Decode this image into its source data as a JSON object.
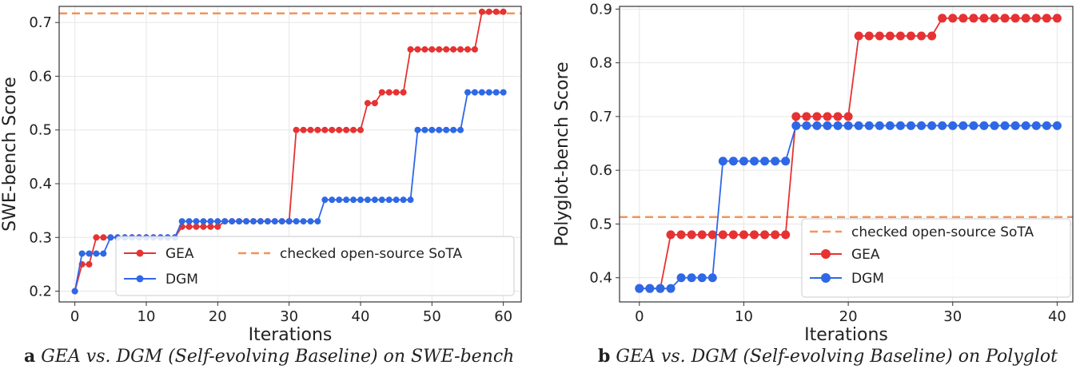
{
  "chart_data": [
    {
      "type": "line",
      "caption_tag": "a",
      "caption": "GEA vs. DGM (Self-evolving Baseline) on SWE-bench",
      "xlabel": "Iterations",
      "ylabel": "SWE-bench Score",
      "xlim": [
        -2.2,
        62.5
      ],
      "ylim": [
        0.18,
        0.73
      ],
      "xticks": [
        0,
        10,
        20,
        30,
        40,
        50,
        60
      ],
      "yticks": [
        0.2,
        0.3,
        0.4,
        0.5,
        0.6,
        0.7
      ],
      "grid": true,
      "legend_position": "bottom-right",
      "reference_line": {
        "name": "checked open-source SoTA",
        "y": 0.717,
        "color": "#f4935a"
      },
      "series": [
        {
          "name": "GEA",
          "color": "#e63232",
          "x": [
            0,
            1,
            2,
            3,
            4,
            5,
            6,
            7,
            8,
            9,
            10,
            11,
            12,
            13,
            14,
            15,
            16,
            17,
            18,
            19,
            20,
            21,
            22,
            23,
            24,
            25,
            26,
            27,
            28,
            29,
            30,
            31,
            32,
            33,
            34,
            35,
            36,
            37,
            38,
            39,
            40,
            41,
            42,
            43,
            44,
            45,
            46,
            47,
            48,
            49,
            50,
            51,
            52,
            53,
            54,
            55,
            56,
            57,
            58,
            59,
            60
          ],
          "y": [
            0.2,
            0.25,
            0.25,
            0.3,
            0.3,
            0.3,
            0.3,
            0.3,
            0.3,
            0.3,
            0.3,
            0.3,
            0.3,
            0.3,
            0.3,
            0.32,
            0.32,
            0.32,
            0.32,
            0.32,
            0.32,
            0.33,
            0.33,
            0.33,
            0.33,
            0.33,
            0.33,
            0.33,
            0.33,
            0.33,
            0.33,
            0.5,
            0.5,
            0.5,
            0.5,
            0.5,
            0.5,
            0.5,
            0.5,
            0.5,
            0.5,
            0.55,
            0.55,
            0.57,
            0.57,
            0.57,
            0.57,
            0.65,
            0.65,
            0.65,
            0.65,
            0.65,
            0.65,
            0.65,
            0.65,
            0.65,
            0.65,
            0.72,
            0.72,
            0.72,
            0.72
          ]
        },
        {
          "name": "DGM",
          "color": "#2e68e6",
          "x": [
            0,
            1,
            2,
            3,
            4,
            5,
            6,
            7,
            8,
            9,
            10,
            11,
            12,
            13,
            14,
            15,
            16,
            17,
            18,
            19,
            20,
            21,
            22,
            23,
            24,
            25,
            26,
            27,
            28,
            29,
            30,
            31,
            32,
            33,
            34,
            35,
            36,
            37,
            38,
            39,
            40,
            41,
            42,
            43,
            44,
            45,
            46,
            47,
            48,
            49,
            50,
            51,
            52,
            53,
            54,
            55,
            56,
            57,
            58,
            59,
            60
          ],
          "y": [
            0.2,
            0.27,
            0.27,
            0.27,
            0.27,
            0.3,
            0.3,
            0.3,
            0.3,
            0.3,
            0.3,
            0.3,
            0.3,
            0.3,
            0.3,
            0.33,
            0.33,
            0.33,
            0.33,
            0.33,
            0.33,
            0.33,
            0.33,
            0.33,
            0.33,
            0.33,
            0.33,
            0.33,
            0.33,
            0.33,
            0.33,
            0.33,
            0.33,
            0.33,
            0.33,
            0.37,
            0.37,
            0.37,
            0.37,
            0.37,
            0.37,
            0.37,
            0.37,
            0.37,
            0.37,
            0.37,
            0.37,
            0.37,
            0.5,
            0.5,
            0.5,
            0.5,
            0.5,
            0.5,
            0.5,
            0.57,
            0.57,
            0.57,
            0.57,
            0.57,
            0.57
          ]
        }
      ]
    },
    {
      "type": "line",
      "caption_tag": "b",
      "caption": "GEA vs. DGM (Self-evolving Baseline) on Polyglot",
      "xlabel": "Iterations",
      "ylabel": "Polyglot-bench Score",
      "xlim": [
        -1.9,
        41.5
      ],
      "ylim": [
        0.355,
        0.905
      ],
      "xticks": [
        0,
        10,
        20,
        30,
        40
      ],
      "yticks": [
        0.4,
        0.5,
        0.6,
        0.7,
        0.8,
        0.9
      ],
      "grid": true,
      "legend_position": "bottom-right",
      "reference_line": {
        "name": "checked open-source SoTA",
        "y": 0.513,
        "color": "#f4935a"
      },
      "series": [
        {
          "name": "GEA",
          "color": "#e63232",
          "x": [
            0,
            1,
            2,
            3,
            4,
            5,
            6,
            7,
            8,
            9,
            10,
            11,
            12,
            13,
            14,
            15,
            16,
            17,
            18,
            19,
            20,
            21,
            22,
            23,
            24,
            25,
            26,
            27,
            28,
            29,
            30,
            31,
            32,
            33,
            34,
            35,
            36,
            37,
            38,
            39,
            40
          ],
          "y": [
            0.38,
            0.38,
            0.38,
            0.48,
            0.48,
            0.48,
            0.48,
            0.48,
            0.48,
            0.48,
            0.48,
            0.48,
            0.48,
            0.48,
            0.48,
            0.7,
            0.7,
            0.7,
            0.7,
            0.7,
            0.7,
            0.85,
            0.85,
            0.85,
            0.85,
            0.85,
            0.85,
            0.85,
            0.85,
            0.883,
            0.883,
            0.883,
            0.883,
            0.883,
            0.883,
            0.883,
            0.883,
            0.883,
            0.883,
            0.883,
            0.883
          ]
        },
        {
          "name": "DGM",
          "color": "#2e68e6",
          "x": [
            0,
            1,
            2,
            3,
            4,
            5,
            6,
            7,
            8,
            9,
            10,
            11,
            12,
            13,
            14,
            15,
            16,
            17,
            18,
            19,
            20,
            21,
            22,
            23,
            24,
            25,
            26,
            27,
            28,
            29,
            30,
            31,
            32,
            33,
            34,
            35,
            36,
            37,
            38,
            39,
            40
          ],
          "y": [
            0.38,
            0.38,
            0.38,
            0.38,
            0.4,
            0.4,
            0.4,
            0.4,
            0.617,
            0.617,
            0.617,
            0.617,
            0.617,
            0.617,
            0.617,
            0.683,
            0.683,
            0.683,
            0.683,
            0.683,
            0.683,
            0.683,
            0.683,
            0.683,
            0.683,
            0.683,
            0.683,
            0.683,
            0.683,
            0.683,
            0.683,
            0.683,
            0.683,
            0.683,
            0.683,
            0.683,
            0.683,
            0.683,
            0.683,
            0.683,
            0.683
          ]
        }
      ]
    }
  ]
}
